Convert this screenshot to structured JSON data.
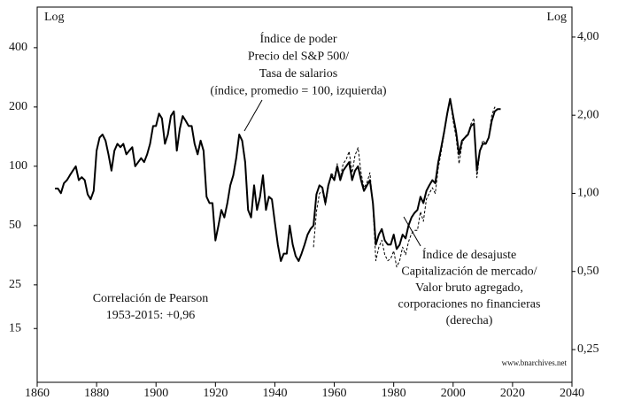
{
  "chart_data": {
    "type": "line",
    "log_scale": true,
    "left_axis_label": "Log",
    "right_axis_label": "Log",
    "xlim": [
      1860,
      2040
    ],
    "xticks": [
      1860,
      1880,
      1900,
      1920,
      1940,
      1960,
      1980,
      2000,
      2020,
      2040
    ],
    "ylim": [
      8,
      643
    ],
    "yticks": [
      15,
      25,
      50,
      100,
      200,
      400
    ],
    "y2lim": [
      0.187,
      5.22
    ],
    "y2ticks": [
      {
        "value": 0.25,
        "label": "0,25"
      },
      {
        "value": 0.5,
        "label": "0,50"
      },
      {
        "value": 1,
        "label": "1,00"
      },
      {
        "value": 2,
        "label": "2,00"
      },
      {
        "value": 4,
        "label": "4,00"
      }
    ],
    "annotations": [
      {
        "lines": [
          "Índice de poder",
          "Precio del S&P 500/",
          "Tasa de salarios",
          "(índice, promedio = 100, izquierda)"
        ]
      },
      {
        "lines": [
          "Índice de desajuste",
          "Capitalización de mercado/",
          "Valor bruto agregado,",
          "corporaciones no financieras",
          "(derecha)"
        ]
      },
      {
        "lines": [
          "Correlación de Pearson",
          "1953-2015: +0,96"
        ]
      }
    ],
    "source": "www.bnarchives.net",
    "series": [
      {
        "color": "#000000",
        "dash": false,
        "axis": "y",
        "x": [
          1866,
          1867,
          1868,
          1869,
          1870,
          1871,
          1872,
          1873,
          1874,
          1875,
          1876,
          1877,
          1878,
          1879,
          1880,
          1881,
          1882,
          1883,
          1884,
          1885,
          1886,
          1887,
          1888,
          1889,
          1890,
          1891,
          1892,
          1893,
          1894,
          1895,
          1896,
          1897,
          1898,
          1899,
          1900,
          1901,
          1902,
          1903,
          1904,
          1905,
          1906,
          1907,
          1908,
          1909,
          1910,
          1911,
          1912,
          1913,
          1914,
          1915,
          1916,
          1917,
          1918,
          1919,
          1920,
          1921,
          1922,
          1923,
          1924,
          1925,
          1926,
          1927,
          1928,
          1929,
          1930,
          1931,
          1932,
          1933,
          1934,
          1935,
          1936,
          1937,
          1938,
          1939,
          1940,
          1941,
          1942,
          1943,
          1944,
          1945,
          1946,
          1947,
          1948,
          1949,
          1950,
          1951,
          1952,
          1953,
          1954,
          1955,
          1956,
          1957,
          1958,
          1959,
          1960,
          1961,
          1962,
          1963,
          1964,
          1965,
          1966,
          1967,
          1968,
          1969,
          1970,
          1971,
          1972,
          1973,
          1974,
          1975,
          1976,
          1977,
          1978,
          1979,
          1980,
          1981,
          1982,
          1983,
          1984,
          1985,
          1986,
          1987,
          1988,
          1989,
          1990,
          1991,
          1992,
          1993,
          1994,
          1995,
          1996,
          1997,
          1998,
          1999,
          2000,
          2001,
          2002,
          2003,
          2004,
          2005,
          2006,
          2007,
          2008,
          2009,
          2010,
          2011,
          2012,
          2013,
          2014,
          2015,
          2016
        ],
        "values": [
          77,
          77,
          73,
          82,
          85,
          90,
          95,
          100,
          85,
          88,
          85,
          72,
          68,
          75,
          120,
          140,
          145,
          135,
          115,
          95,
          120,
          130,
          125,
          130,
          115,
          120,
          125,
          100,
          105,
          110,
          105,
          115,
          130,
          160,
          160,
          185,
          175,
          130,
          145,
          180,
          190,
          120,
          155,
          180,
          170,
          160,
          160,
          130,
          115,
          135,
          120,
          70,
          65,
          65,
          42,
          50,
          60,
          55,
          65,
          80,
          90,
          110,
          145,
          135,
          105,
          60,
          55,
          80,
          60,
          70,
          90,
          60,
          70,
          68,
          52,
          40,
          33,
          36,
          36,
          50,
          40,
          35,
          33,
          36,
          40,
          45,
          48,
          50,
          72,
          80,
          78,
          65,
          80,
          90,
          85,
          100,
          85,
          95,
          100,
          105,
          85,
          95,
          100,
          85,
          75,
          80,
          85,
          65,
          40,
          45,
          48,
          42,
          40,
          40,
          45,
          38,
          40,
          45,
          43,
          50,
          55,
          58,
          60,
          70,
          65,
          75,
          80,
          85,
          82,
          105,
          125,
          150,
          185,
          220,
          180,
          150,
          115,
          135,
          140,
          145,
          160,
          165,
          95,
          120,
          130,
          130,
          140,
          170,
          190,
          195,
          195
        ]
      },
      {
        "color": "#000000",
        "dash": true,
        "axis": "y2",
        "x": [
          1953,
          1954,
          1955,
          1956,
          1957,
          1958,
          1959,
          1960,
          1961,
          1962,
          1963,
          1964,
          1965,
          1966,
          1967,
          1968,
          1969,
          1970,
          1971,
          1972,
          1973,
          1974,
          1975,
          1976,
          1977,
          1978,
          1979,
          1980,
          1981,
          1982,
          1983,
          1984,
          1985,
          1986,
          1987,
          1988,
          1989,
          1990,
          1991,
          1992,
          1993,
          1994,
          1995,
          1996,
          1997,
          1998,
          1999,
          2000,
          2001,
          2002,
          2003,
          2004,
          2005,
          2006,
          2007,
          2008,
          2009,
          2010,
          2011,
          2012,
          2013,
          2014,
          2015
        ],
        "values": [
          0.62,
          0.85,
          1.0,
          1.02,
          0.9,
          1.05,
          1.2,
          1.15,
          1.3,
          1.15,
          1.3,
          1.35,
          1.45,
          1.2,
          1.4,
          1.5,
          1.2,
          1.05,
          1.1,
          1.2,
          0.9,
          0.55,
          0.62,
          0.66,
          0.58,
          0.55,
          0.56,
          0.6,
          0.52,
          0.55,
          0.62,
          0.58,
          0.65,
          0.7,
          0.72,
          0.72,
          0.85,
          0.78,
          0.95,
          1.0,
          1.05,
          1.0,
          1.25,
          1.45,
          1.7,
          2.0,
          2.3,
          1.9,
          1.65,
          1.3,
          1.55,
          1.65,
          1.7,
          1.85,
          1.95,
          1.15,
          1.45,
          1.6,
          1.55,
          1.65,
          2.0,
          2.15,
          2.1
        ]
      }
    ]
  }
}
